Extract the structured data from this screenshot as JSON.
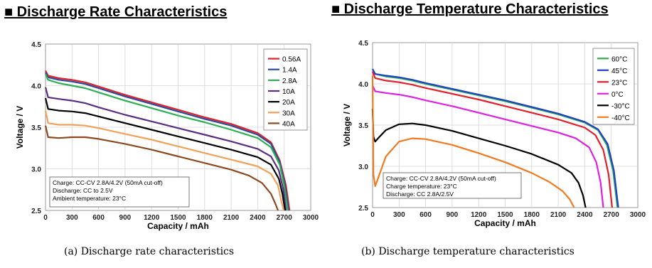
{
  "chart_data": [
    {
      "type": "line",
      "title": "■ Discharge Rate Characteristics",
      "caption": "(a) Discharge rate characteristics",
      "xlabel": "Capacity / mAh",
      "ylabel": "Voltage / V",
      "xlim": [
        0,
        3000
      ],
      "ylim": [
        2.5,
        4.5
      ],
      "xticks": [
        0,
        300,
        600,
        900,
        1200,
        1500,
        1800,
        2100,
        2400,
        2700,
        3000
      ],
      "yticks": [
        2.5,
        3.0,
        3.5,
        4.0,
        4.5
      ],
      "grid": true,
      "legend_position": "top-right",
      "annotation": [
        "Charge: CC-CV 2.8A/4.2V (50mA cut-off)",
        "Discharge: CC to 2.5V",
        "Ambient temperature: 23°C"
      ],
      "series": [
        {
          "name": "0.56A",
          "color": "#e0202a",
          "points": [
            [
              0,
              4.18
            ],
            [
              30,
              4.12
            ],
            [
              150,
              4.09
            ],
            [
              300,
              4.07
            ],
            [
              450,
              4.04
            ],
            [
              600,
              3.99
            ],
            [
              900,
              3.89
            ],
            [
              1200,
              3.8
            ],
            [
              1500,
              3.71
            ],
            [
              1800,
              3.62
            ],
            [
              2100,
              3.54
            ],
            [
              2400,
              3.43
            ],
            [
              2550,
              3.32
            ],
            [
              2650,
              3.1
            ],
            [
              2720,
              2.8
            ],
            [
              2760,
              2.5
            ]
          ]
        },
        {
          "name": "1.4A",
          "color": "#2b4a9a",
          "points": [
            [
              0,
              4.16
            ],
            [
              30,
              4.1
            ],
            [
              150,
              4.07
            ],
            [
              300,
              4.05
            ],
            [
              450,
              4.02
            ],
            [
              600,
              3.97
            ],
            [
              900,
              3.87
            ],
            [
              1200,
              3.78
            ],
            [
              1500,
              3.69
            ],
            [
              1800,
              3.6
            ],
            [
              2100,
              3.52
            ],
            [
              2400,
              3.41
            ],
            [
              2550,
              3.3
            ],
            [
              2650,
              3.08
            ],
            [
              2710,
              2.8
            ],
            [
              2750,
              2.5
            ]
          ]
        },
        {
          "name": "2.8A",
          "color": "#2fae55",
          "points": [
            [
              0,
              4.14
            ],
            [
              30,
              4.07
            ],
            [
              150,
              4.03
            ],
            [
              300,
              4.0
            ],
            [
              450,
              3.97
            ],
            [
              600,
              3.92
            ],
            [
              900,
              3.82
            ],
            [
              1200,
              3.73
            ],
            [
              1500,
              3.64
            ],
            [
              1800,
              3.56
            ],
            [
              2100,
              3.47
            ],
            [
              2400,
              3.37
            ],
            [
              2550,
              3.26
            ],
            [
              2650,
              3.05
            ],
            [
              2700,
              2.8
            ],
            [
              2740,
              2.5
            ]
          ]
        },
        {
          "name": "10A",
          "color": "#5a2d82",
          "points": [
            [
              0,
              3.98
            ],
            [
              30,
              3.86
            ],
            [
              150,
              3.84
            ],
            [
              300,
              3.82
            ],
            [
              450,
              3.79
            ],
            [
              600,
              3.74
            ],
            [
              900,
              3.65
            ],
            [
              1200,
              3.57
            ],
            [
              1500,
              3.49
            ],
            [
              1800,
              3.41
            ],
            [
              2100,
              3.33
            ],
            [
              2400,
              3.24
            ],
            [
              2550,
              3.15
            ],
            [
              2640,
              2.98
            ],
            [
              2690,
              2.75
            ],
            [
              2720,
              2.5
            ]
          ]
        },
        {
          "name": "20A",
          "color": "#000000",
          "points": [
            [
              0,
              3.85
            ],
            [
              30,
              3.72
            ],
            [
              150,
              3.7
            ],
            [
              300,
              3.69
            ],
            [
              450,
              3.67
            ],
            [
              600,
              3.63
            ],
            [
              900,
              3.55
            ],
            [
              1200,
              3.47
            ],
            [
              1500,
              3.39
            ],
            [
              1800,
              3.31
            ],
            [
              2100,
              3.23
            ],
            [
              2400,
              3.14
            ],
            [
              2550,
              3.05
            ],
            [
              2640,
              2.88
            ],
            [
              2680,
              2.7
            ],
            [
              2710,
              2.5
            ]
          ]
        },
        {
          "name": "30A",
          "color": "#f2a15a",
          "points": [
            [
              0,
              3.7
            ],
            [
              30,
              3.55
            ],
            [
              150,
              3.53
            ],
            [
              300,
              3.53
            ],
            [
              450,
              3.52
            ],
            [
              600,
              3.49
            ],
            [
              900,
              3.42
            ],
            [
              1200,
              3.35
            ],
            [
              1500,
              3.27
            ],
            [
              1800,
              3.19
            ],
            [
              2100,
              3.11
            ],
            [
              2400,
              3.03
            ],
            [
              2550,
              2.94
            ],
            [
              2630,
              2.8
            ],
            [
              2670,
              2.6
            ],
            [
              2695,
              2.5
            ]
          ]
        },
        {
          "name": "40A",
          "color": "#8a4a20",
          "points": [
            [
              0,
              3.52
            ],
            [
              30,
              3.38
            ],
            [
              150,
              3.37
            ],
            [
              300,
              3.38
            ],
            [
              450,
              3.38
            ],
            [
              600,
              3.36
            ],
            [
              900,
              3.3
            ],
            [
              1200,
              3.23
            ],
            [
              1500,
              3.15
            ],
            [
              1800,
              3.07
            ],
            [
              2100,
              2.99
            ],
            [
              2300,
              2.92
            ],
            [
              2450,
              2.83
            ],
            [
              2550,
              2.7
            ],
            [
              2600,
              2.58
            ],
            [
              2630,
              2.5
            ]
          ]
        }
      ]
    },
    {
      "type": "line",
      "title": "■ Discharge Temperature Characteristics",
      "caption": "(b) Discharge temperature characteristics",
      "xlabel": "Capacity / mAh",
      "ylabel": "Voltage / V",
      "xlim": [
        0,
        3000
      ],
      "ylim": [
        2.5,
        4.5
      ],
      "xticks": [
        0,
        300,
        600,
        900,
        1200,
        1500,
        1800,
        2100,
        2400,
        2700,
        3000
      ],
      "yticks": [
        2.5,
        3.0,
        3.5,
        4.0,
        4.5
      ],
      "grid": true,
      "legend_position": "top-right",
      "annotation": [
        "Charge: CC-CV 2.8A/4.2V (50mA cut-off)",
        "Charge temperature: 23°C",
        "Discharge: CC 2.8A/2.5V"
      ],
      "series": [
        {
          "name": "60°C",
          "color": "#2fae55",
          "points": [
            [
              0,
              4.18
            ],
            [
              30,
              4.12
            ],
            [
              150,
              4.09
            ],
            [
              300,
              4.07
            ],
            [
              450,
              4.04
            ],
            [
              600,
              4.0
            ],
            [
              900,
              3.93
            ],
            [
              1200,
              3.86
            ],
            [
              1500,
              3.79
            ],
            [
              1800,
              3.71
            ],
            [
              2100,
              3.63
            ],
            [
              2400,
              3.53
            ],
            [
              2550,
              3.44
            ],
            [
              2650,
              3.26
            ],
            [
              2720,
              2.95
            ],
            [
              2770,
              2.5
            ]
          ]
        },
        {
          "name": "45°C",
          "color": "#1f3fc4",
          "points": [
            [
              0,
              4.18
            ],
            [
              30,
              4.12
            ],
            [
              150,
              4.1
            ],
            [
              300,
              4.08
            ],
            [
              450,
              4.05
            ],
            [
              600,
              4.01
            ],
            [
              900,
              3.94
            ],
            [
              1200,
              3.87
            ],
            [
              1500,
              3.8
            ],
            [
              1800,
              3.72
            ],
            [
              2100,
              3.64
            ],
            [
              2400,
              3.54
            ],
            [
              2550,
              3.45
            ],
            [
              2660,
              3.27
            ],
            [
              2730,
              2.95
            ],
            [
              2780,
              2.5
            ]
          ]
        },
        {
          "name": "23°C",
          "color": "#e0202a",
          "points": [
            [
              0,
              4.15
            ],
            [
              30,
              4.07
            ],
            [
              150,
              4.04
            ],
            [
              300,
              4.02
            ],
            [
              450,
              3.99
            ],
            [
              600,
              3.95
            ],
            [
              900,
              3.88
            ],
            [
              1200,
              3.81
            ],
            [
              1500,
              3.73
            ],
            [
              1800,
              3.65
            ],
            [
              2100,
              3.57
            ],
            [
              2400,
              3.47
            ],
            [
              2520,
              3.38
            ],
            [
              2610,
              3.2
            ],
            [
              2670,
              2.9
            ],
            [
              2710,
              2.5
            ]
          ]
        },
        {
          "name": "0°C",
          "color": "#e020e0",
          "points": [
            [
              0,
              3.98
            ],
            [
              30,
              3.91
            ],
            [
              150,
              3.89
            ],
            [
              300,
              3.87
            ],
            [
              450,
              3.84
            ],
            [
              600,
              3.8
            ],
            [
              900,
              3.73
            ],
            [
              1200,
              3.65
            ],
            [
              1500,
              3.57
            ],
            [
              1800,
              3.49
            ],
            [
              2100,
              3.41
            ],
            [
              2300,
              3.34
            ],
            [
              2450,
              3.23
            ],
            [
              2530,
              3.05
            ],
            [
              2580,
              2.8
            ],
            [
              2610,
              2.5
            ]
          ]
        },
        {
          "name": "-30°C",
          "color": "#000000",
          "points": [
            [
              0,
              3.7
            ],
            [
              10,
              3.36
            ],
            [
              30,
              3.3
            ],
            [
              80,
              3.36
            ],
            [
              150,
              3.44
            ],
            [
              300,
              3.51
            ],
            [
              450,
              3.52
            ],
            [
              600,
              3.5
            ],
            [
              900,
              3.43
            ],
            [
              1200,
              3.34
            ],
            [
              1500,
              3.25
            ],
            [
              1800,
              3.15
            ],
            [
              2100,
              3.02
            ],
            [
              2250,
              2.92
            ],
            [
              2330,
              2.8
            ],
            [
              2380,
              2.65
            ],
            [
              2410,
              2.5
            ]
          ]
        },
        {
          "name": "-40°C",
          "color": "#f07a20",
          "points": [
            [
              0,
              4.1
            ],
            [
              10,
              2.9
            ],
            [
              30,
              2.76
            ],
            [
              60,
              2.85
            ],
            [
              150,
              3.12
            ],
            [
              300,
              3.3
            ],
            [
              450,
              3.34
            ],
            [
              600,
              3.33
            ],
            [
              900,
              3.26
            ],
            [
              1200,
              3.16
            ],
            [
              1500,
              3.05
            ],
            [
              1800,
              2.92
            ],
            [
              2000,
              2.81
            ],
            [
              2150,
              2.7
            ],
            [
              2230,
              2.6
            ],
            [
              2280,
              2.5
            ]
          ]
        }
      ]
    }
  ]
}
